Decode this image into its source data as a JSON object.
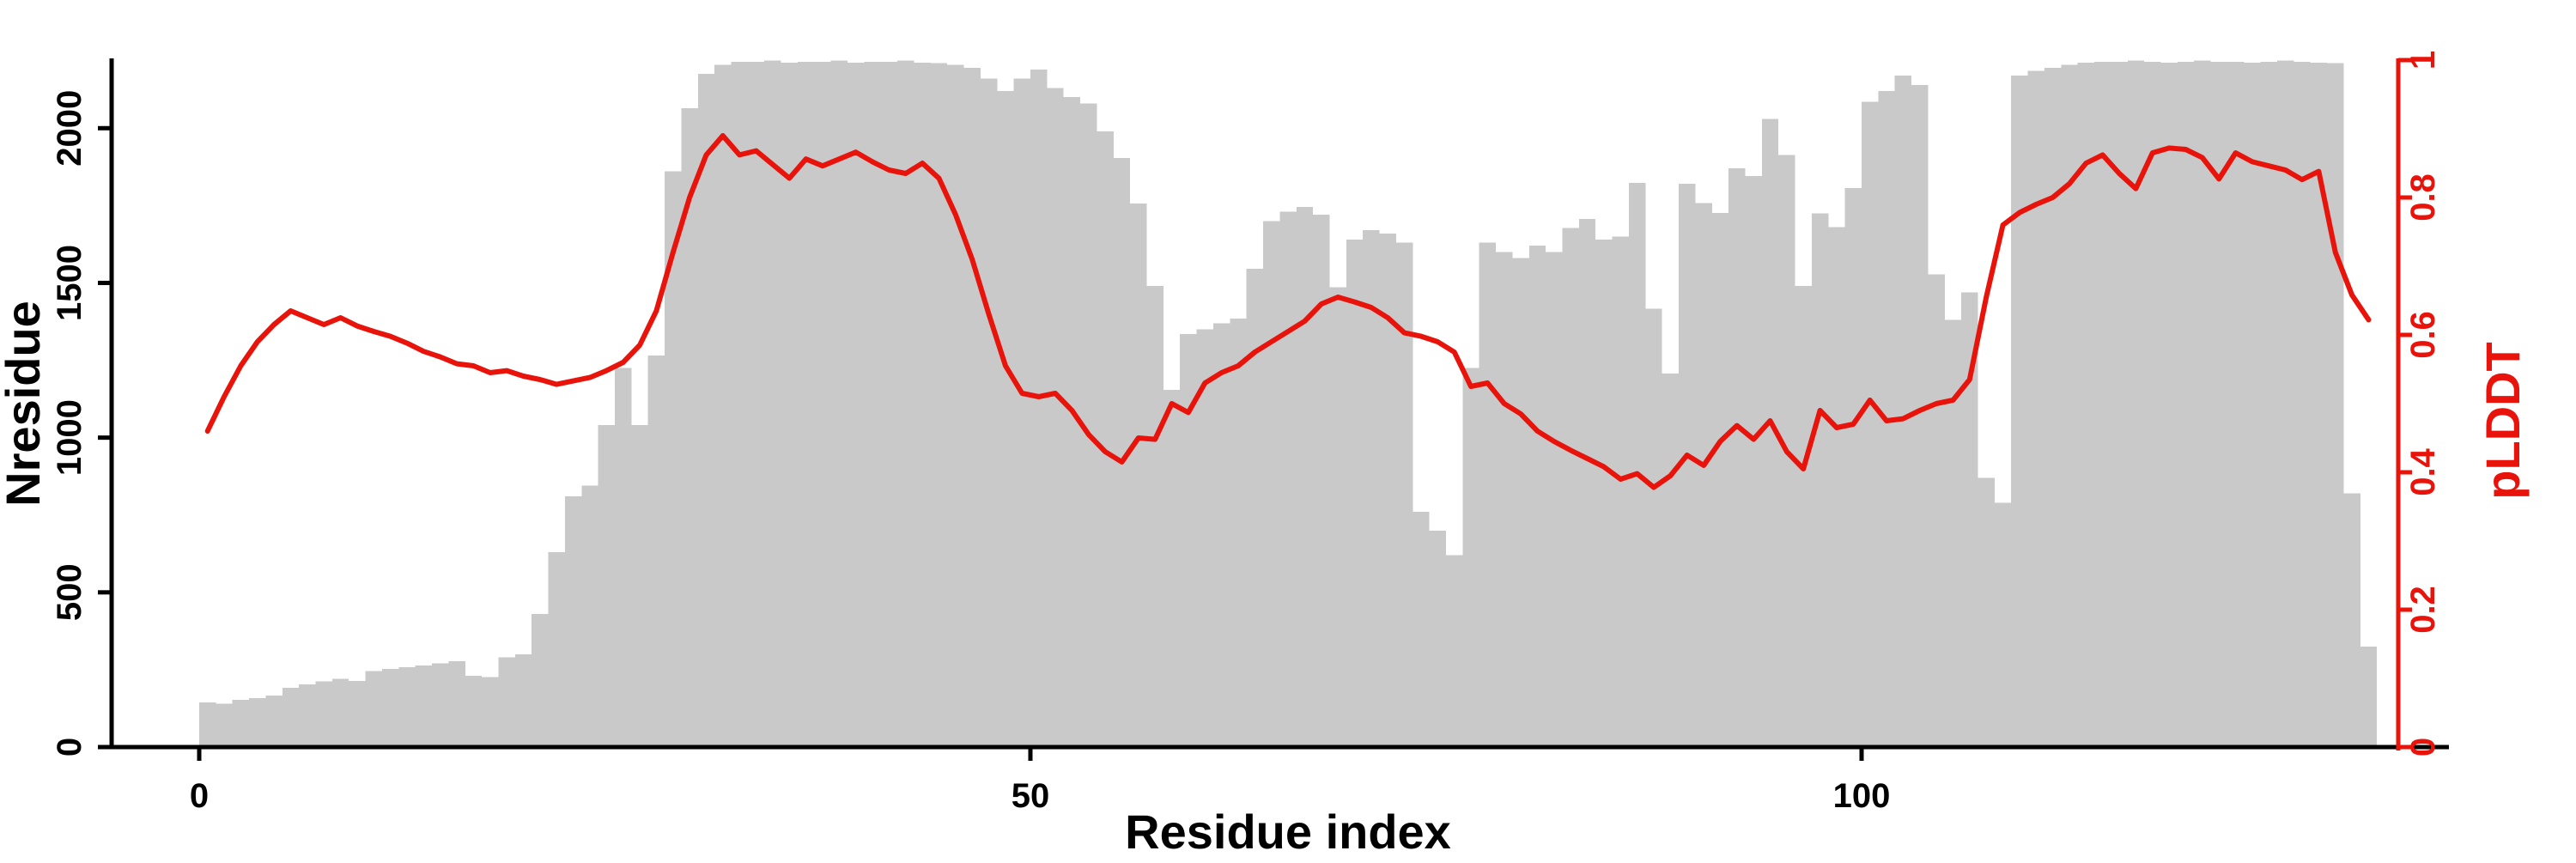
{
  "chart_data": {
    "type": "combo",
    "title": "",
    "xlabel": "Residue index",
    "ylabel_left": "Nresidue",
    "ylabel_right": "pLDDT",
    "x_ticks": [
      0,
      50,
      100
    ],
    "xlim": [
      -5.3,
      135.3
    ],
    "y_left_ticks": [
      0,
      500,
      1000,
      1500,
      2000
    ],
    "ylim_left": [
      0,
      2220
    ],
    "y_right_ticks": [
      0,
      0.2,
      0.4,
      0.6,
      0.8,
      1
    ],
    "y_right_tick_labels": [
      "0",
      "0.2",
      "0.4",
      "0.6",
      "0.8",
      "1"
    ],
    "ylim_right": [
      0,
      1
    ],
    "grid": false,
    "legend": "none",
    "colors": {
      "bars": "#c9c9c9",
      "line": "#e8130a",
      "left_axis": "#000000",
      "right_axis": "#e8130a"
    },
    "x_start": 1,
    "series": [
      {
        "name": "Nresidue",
        "type": "bar",
        "axis": "left",
        "values": [
          145,
          140,
          152,
          158,
          166,
          192,
          202,
          212,
          220,
          214,
          245,
          252,
          258,
          263,
          270,
          277,
          230,
          226,
          290,
          300,
          430,
          630,
          810,
          845,
          1040,
          1225,
          1040,
          1265,
          1860,
          2065,
          2175,
          2205,
          2215,
          2215,
          2218,
          2212,
          2215,
          2215,
          2218,
          2212,
          2215,
          2215,
          2218,
          2212,
          2210,
          2205,
          2195,
          2160,
          2120,
          2160,
          2190,
          2130,
          2100,
          2080,
          1990,
          1903,
          1757,
          1490,
          1154,
          1335,
          1350,
          1370,
          1385,
          1546,
          1700,
          1730,
          1745,
          1720,
          1486,
          1640,
          1670,
          1660,
          1630,
          760,
          700,
          620,
          1225,
          1630,
          1600,
          1580,
          1621,
          1600,
          1677,
          1707,
          1640,
          1650,
          1823,
          1417,
          1207,
          1820,
          1758,
          1726,
          1870,
          1845,
          2030,
          1914,
          1490,
          1725,
          1680,
          1806,
          2085,
          2120,
          2170,
          2140,
          1527,
          1380,
          1470,
          870,
          790,
          2170,
          2185,
          2195,
          2205,
          2212,
          2215,
          2215,
          2218,
          2215,
          2212,
          2215,
          2218,
          2215,
          2215,
          2212,
          2215,
          2218,
          2215,
          2212,
          2210,
          820,
          325
        ]
      },
      {
        "name": "pLDDT",
        "type": "line",
        "axis": "right",
        "values": [
          0.46,
          0.51,
          0.555,
          0.59,
          0.615,
          0.635,
          0.625,
          0.615,
          0.625,
          0.613,
          0.605,
          0.598,
          0.588,
          0.576,
          0.568,
          0.558,
          0.555,
          0.545,
          0.548,
          0.54,
          0.535,
          0.528,
          0.533,
          0.538,
          0.548,
          0.56,
          0.585,
          0.635,
          0.72,
          0.8,
          0.862,
          0.89,
          0.862,
          0.868,
          0.848,
          0.828,
          0.856,
          0.846,
          0.856,
          0.866,
          0.852,
          0.84,
          0.835,
          0.85,
          0.828,
          0.775,
          0.71,
          0.63,
          0.555,
          0.515,
          0.51,
          0.515,
          0.49,
          0.455,
          0.43,
          0.415,
          0.45,
          0.448,
          0.5,
          0.487,
          0.53,
          0.545,
          0.555,
          0.575,
          0.59,
          0.605,
          0.62,
          0.645,
          0.655,
          0.648,
          0.64,
          0.625,
          0.603,
          0.598,
          0.59,
          0.575,
          0.525,
          0.53,
          0.5,
          0.485,
          0.46,
          0.445,
          0.432,
          0.42,
          0.408,
          0.39,
          0.398,
          0.378,
          0.395,
          0.425,
          0.41,
          0.445,
          0.468,
          0.448,
          0.475,
          0.43,
          0.405,
          0.49,
          0.465,
          0.47,
          0.505,
          0.475,
          0.478,
          0.49,
          0.5,
          0.505,
          0.535,
          0.655,
          0.76,
          0.778,
          0.79,
          0.8,
          0.82,
          0.85,
          0.862,
          0.835,
          0.813,
          0.865,
          0.872,
          0.87,
          0.858,
          0.827,
          0.865,
          0.852,
          0.846,
          0.84,
          0.826,
          0.838,
          0.72,
          0.658,
          0.622
        ]
      }
    ]
  }
}
